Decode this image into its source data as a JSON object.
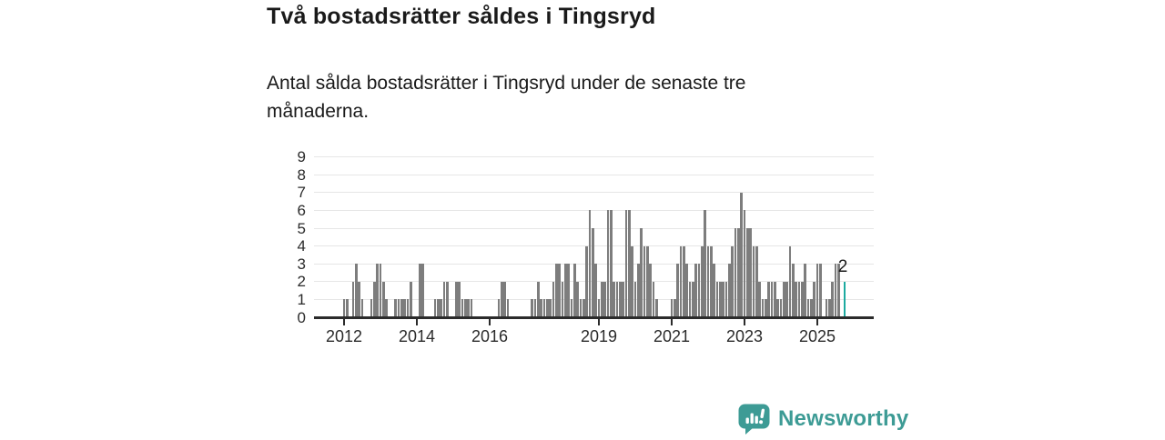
{
  "title": "Två bostadsrätter såldes i Tingsryd",
  "subtitle": "Antal sålda bostadsrätter i Tingsryd under de senaste tre månaderna.",
  "annotation": {
    "label": "2"
  },
  "logo": {
    "text": "Newsworthy"
  },
  "colors": {
    "bar": "#7d7d7d",
    "highlight": "#1caaa0",
    "logo": "#3d9b95",
    "grid": "#e6e6e6",
    "axis": "#2b2b2b",
    "text": "#1a1a1a"
  },
  "chart_data": {
    "type": "bar",
    "title": "Två bostadsrätter såldes i Tingsryd",
    "xlabel": "",
    "ylabel": "",
    "x_start": "2012-01",
    "x_end": "2025-10",
    "x_unit": "month",
    "ylim": [
      0,
      9
    ],
    "grid": true,
    "y_ticks": [
      0,
      1,
      2,
      3,
      4,
      5,
      6,
      7,
      8,
      9
    ],
    "x_tick_labels": [
      "2012",
      "2014",
      "2016",
      "2019",
      "2021",
      "2023",
      "2025"
    ],
    "x_tick_month_index": [
      0,
      24,
      48,
      84,
      108,
      132,
      156
    ],
    "values": [
      1,
      1,
      0,
      2,
      3,
      2,
      1,
      0,
      0,
      1,
      2,
      3,
      3,
      2,
      1,
      0,
      0,
      1,
      1,
      1,
      1,
      1,
      2,
      0,
      0,
      3,
      3,
      0,
      0,
      0,
      1,
      1,
      1,
      2,
      2,
      0,
      0,
      2,
      2,
      1,
      1,
      1,
      1,
      0,
      0,
      0,
      0,
      0,
      0,
      0,
      0,
      1,
      2,
      2,
      1,
      0,
      0,
      0,
      0,
      0,
      0,
      0,
      1,
      1,
      2,
      1,
      1,
      1,
      1,
      2,
      3,
      3,
      2,
      3,
      3,
      1,
      3,
      2,
      1,
      1,
      4,
      6,
      5,
      3,
      1,
      2,
      2,
      6,
      6,
      2,
      2,
      2,
      2,
      6,
      6,
      4,
      2,
      3,
      5,
      4,
      4,
      3,
      2,
      1,
      0,
      0,
      0,
      0,
      1,
      1,
      3,
      4,
      4,
      3,
      2,
      2,
      3,
      3,
      4,
      6,
      4,
      4,
      3,
      2,
      2,
      2,
      2,
      3,
      4,
      5,
      5,
      7,
      6,
      5,
      5,
      4,
      4,
      2,
      1,
      1,
      2,
      2,
      2,
      1,
      1,
      2,
      2,
      4,
      3,
      2,
      2,
      2,
      3,
      1,
      1,
      2,
      3,
      3,
      0,
      1,
      1,
      2,
      3,
      3,
      0,
      2
    ],
    "highlight_last_bar": true,
    "last_bar_value": 2,
    "legend": null
  }
}
